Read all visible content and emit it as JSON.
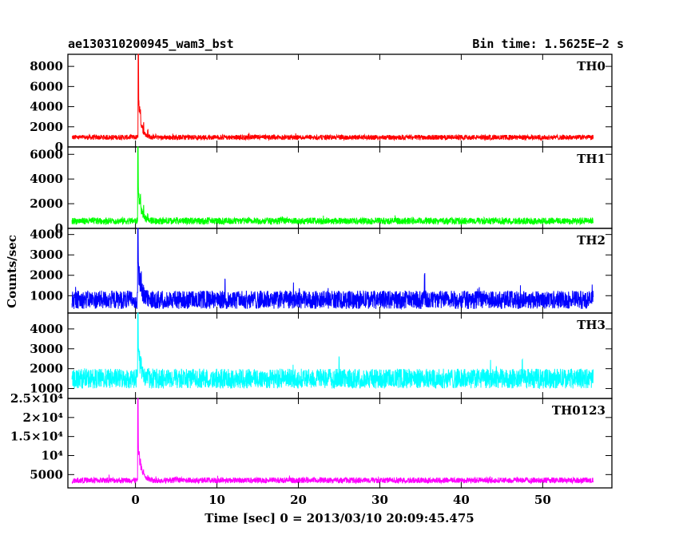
{
  "header": {
    "title": "ae130310200945_wam3_bst",
    "bin_time": "Bin time: 1.5625E−2 s"
  },
  "chart_data": {
    "type": "line",
    "xlabel": "Time [sec] 0 = 2013/03/10 20:09:45.475",
    "ylabel": "Counts/sec",
    "xlim": [
      -8.3,
      58.5
    ],
    "x_ticks": [
      0,
      10,
      20,
      30,
      40,
      50
    ],
    "x_tick_labels": [
      "0",
      "10",
      "20",
      "30",
      "40",
      "50"
    ],
    "data_x_range": [
      -7.8,
      56.2
    ],
    "bin_time_s": 0.015625,
    "panels": [
      {
        "name": "TH0",
        "color": "#ff0000",
        "ylim": [
          0,
          9200
        ],
        "yticks": [
          0,
          2000,
          4000,
          6000,
          8000
        ],
        "ytick_labels": [
          "0",
          "2000",
          "4000",
          "6000",
          "8000"
        ],
        "baseline_mean": 950,
        "baseline_spread": 500,
        "peak": {
          "t": 0.35,
          "value": 9200
        },
        "afterglow": [
          {
            "t": 0.6,
            "value": 4000
          },
          {
            "t": 1.0,
            "value": 2500
          },
          {
            "t": 1.5,
            "value": 1800
          },
          {
            "t": 2.5,
            "value": 1300
          }
        ]
      },
      {
        "name": "TH1",
        "color": "#00ff00",
        "ylim": [
          0,
          6600
        ],
        "yticks": [
          0,
          2000,
          4000,
          6000
        ],
        "ytick_labels": [
          "0",
          "2000",
          "4000",
          "6000"
        ],
        "baseline_mean": 600,
        "baseline_spread": 550,
        "peak": {
          "t": 0.3,
          "value": 6600
        },
        "afterglow": [
          {
            "t": 0.6,
            "value": 2800
          },
          {
            "t": 1.0,
            "value": 2000
          },
          {
            "t": 1.5,
            "value": 1200
          }
        ]
      },
      {
        "name": "TH2",
        "color": "#0000ff",
        "ylim": [
          150,
          4300
        ],
        "yticks": [
          1000,
          2000,
          3000,
          4000
        ],
        "ytick_labels": [
          "1000",
          "2000",
          "3000",
          "4000"
        ],
        "baseline_mean": 800,
        "baseline_spread": 900,
        "peak": {
          "t": 0.3,
          "value": 4300
        },
        "afterglow": [
          {
            "t": 0.7,
            "value": 2300
          },
          {
            "t": 11.0,
            "value": 2000
          },
          {
            "t": 35.5,
            "value": 2300
          }
        ]
      },
      {
        "name": "TH3",
        "color": "#00ffff",
        "ylim": [
          500,
          4800
        ],
        "yticks": [
          1000,
          2000,
          3000,
          4000
        ],
        "ytick_labels": [
          "1000",
          "2000",
          "3000",
          "4000"
        ],
        "baseline_mean": 1500,
        "baseline_spread": 1000,
        "peak": {
          "t": 0.3,
          "value": 4800
        },
        "afterglow": [
          {
            "t": 0.7,
            "value": 2600
          },
          {
            "t": 25.0,
            "value": 2700
          },
          {
            "t": 47.5,
            "value": 2600
          }
        ]
      },
      {
        "name": "TH0123",
        "color": "#ff00ff",
        "ylim": [
          1500,
          25000
        ],
        "yticks": [
          5000,
          10000,
          15000,
          20000,
          25000
        ],
        "ytick_labels": [
          "5000",
          "10⁴",
          "1.5×10⁴",
          "2×10⁴",
          "2.5×10⁴"
        ],
        "baseline_mean": 3500,
        "baseline_spread": 1500,
        "peak": {
          "t": 0.3,
          "value": 25000
        },
        "afterglow": [
          {
            "t": 0.6,
            "value": 10000
          },
          {
            "t": 1.0,
            "value": 6500
          },
          {
            "t": 1.5,
            "value": 5000
          },
          {
            "t": 2.5,
            "value": 4600
          }
        ]
      }
    ]
  }
}
